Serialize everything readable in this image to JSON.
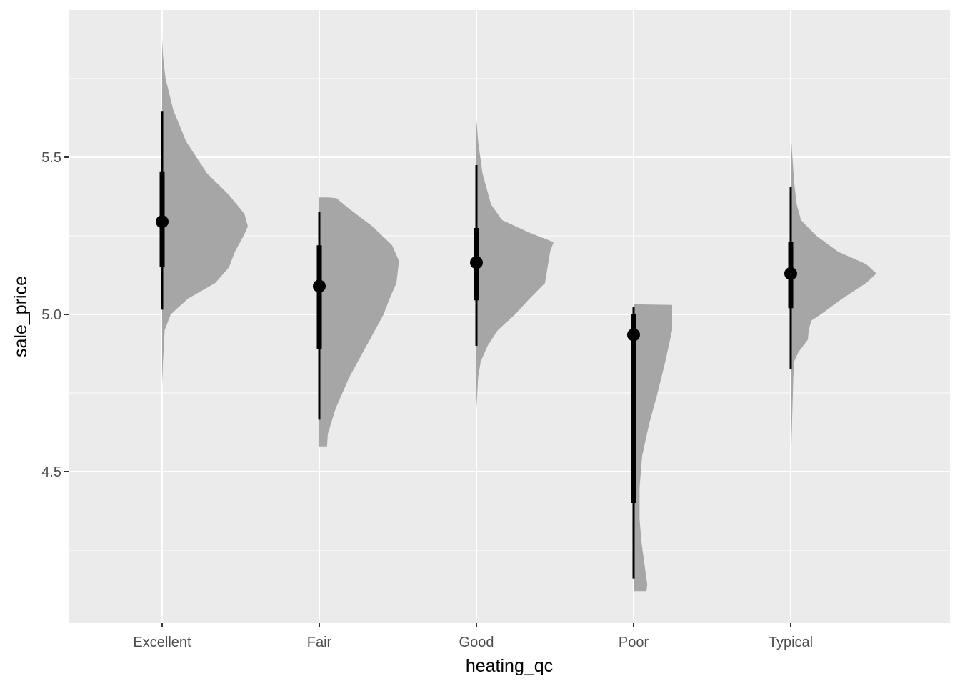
{
  "chart_data": {
    "type": "half-eye",
    "xlabel": "heating_qc",
    "ylabel": "sale_price",
    "categories": [
      "Excellent",
      "Fair",
      "Good",
      "Poor",
      "Typical"
    ],
    "y_ticks": [
      4.5,
      5.0,
      5.5
    ],
    "y_tick_labels": [
      "4.5",
      "5.0",
      "5.5"
    ],
    "ylim": [
      4.04,
      5.98
    ],
    "grid": true,
    "colors": {
      "panel": "#ebebeb",
      "grid": "#ffffff",
      "density": "#a6a6a6",
      "interval": "#000000"
    },
    "series": [
      {
        "category": "Excellent",
        "point": 5.295,
        "inner_interval": [
          5.15,
          5.455
        ],
        "outer_interval": [
          5.015,
          5.645
        ],
        "density": [
          [
            4.77,
            0.0
          ],
          [
            4.85,
            0.01
          ],
          [
            4.95,
            0.03
          ],
          [
            5.0,
            0.1
          ],
          [
            5.05,
            0.3
          ],
          [
            5.1,
            0.62
          ],
          [
            5.15,
            0.78
          ],
          [
            5.2,
            0.85
          ],
          [
            5.25,
            0.95
          ],
          [
            5.28,
            1.0
          ],
          [
            5.32,
            0.96
          ],
          [
            5.38,
            0.78
          ],
          [
            5.45,
            0.52
          ],
          [
            5.55,
            0.28
          ],
          [
            5.65,
            0.13
          ],
          [
            5.75,
            0.04
          ],
          [
            5.82,
            0.01
          ],
          [
            5.88,
            0.0
          ]
        ]
      },
      {
        "category": "Fair",
        "point": 5.09,
        "inner_interval": [
          4.89,
          5.22
        ],
        "outer_interval": [
          4.665,
          5.325
        ],
        "density": [
          [
            4.58,
            0.09
          ],
          [
            4.62,
            0.1
          ],
          [
            4.7,
            0.19
          ],
          [
            4.8,
            0.35
          ],
          [
            4.9,
            0.55
          ],
          [
            5.0,
            0.75
          ],
          [
            5.05,
            0.82
          ],
          [
            5.1,
            0.9
          ],
          [
            5.17,
            0.93
          ],
          [
            5.22,
            0.85
          ],
          [
            5.28,
            0.62
          ],
          [
            5.34,
            0.33
          ],
          [
            5.37,
            0.2
          ],
          [
            5.372,
            0.1
          ]
        ]
      },
      {
        "category": "Good",
        "point": 5.165,
        "inner_interval": [
          5.045,
          5.275
        ],
        "outer_interval": [
          4.9,
          5.475
        ],
        "density": [
          [
            4.7,
            0.0
          ],
          [
            4.75,
            0.01
          ],
          [
            4.8,
            0.02
          ],
          [
            4.85,
            0.05
          ],
          [
            4.9,
            0.13
          ],
          [
            4.95,
            0.25
          ],
          [
            5.0,
            0.45
          ],
          [
            5.05,
            0.62
          ],
          [
            5.1,
            0.8
          ],
          [
            5.15,
            0.83
          ],
          [
            5.2,
            0.86
          ],
          [
            5.23,
            0.9
          ],
          [
            5.26,
            0.62
          ],
          [
            5.3,
            0.3
          ],
          [
            5.35,
            0.17
          ],
          [
            5.45,
            0.07
          ],
          [
            5.55,
            0.02
          ],
          [
            5.62,
            0.0
          ]
        ]
      },
      {
        "category": "Poor",
        "point": 4.935,
        "inner_interval": [
          4.4,
          5.0
        ],
        "outer_interval": [
          4.16,
          5.025
        ],
        "density": [
          [
            4.12,
            0.15
          ],
          [
            4.14,
            0.16
          ],
          [
            4.2,
            0.13
          ],
          [
            4.28,
            0.09
          ],
          [
            4.35,
            0.07
          ],
          [
            4.45,
            0.07
          ],
          [
            4.55,
            0.1
          ],
          [
            4.65,
            0.18
          ],
          [
            4.75,
            0.28
          ],
          [
            4.85,
            0.37
          ],
          [
            4.95,
            0.45
          ],
          [
            5.0,
            0.45
          ],
          [
            5.03,
            0.45
          ],
          [
            5.032,
            0.0
          ]
        ]
      },
      {
        "category": "Typical",
        "point": 5.13,
        "inner_interval": [
          5.02,
          5.23
        ],
        "outer_interval": [
          4.825,
          5.405
        ],
        "density": [
          [
            4.11,
            0.0
          ],
          [
            4.2,
            0.0
          ],
          [
            4.47,
            0.0
          ],
          [
            4.6,
            0.01
          ],
          [
            4.7,
            0.02
          ],
          [
            4.8,
            0.03
          ],
          [
            4.85,
            0.04
          ],
          [
            4.88,
            0.09
          ],
          [
            4.92,
            0.2
          ],
          [
            4.95,
            0.21
          ],
          [
            4.98,
            0.24
          ],
          [
            5.0,
            0.35
          ],
          [
            5.05,
            0.6
          ],
          [
            5.1,
            0.88
          ],
          [
            5.13,
            1.0
          ],
          [
            5.16,
            0.88
          ],
          [
            5.2,
            0.55
          ],
          [
            5.25,
            0.3
          ],
          [
            5.3,
            0.12
          ],
          [
            5.35,
            0.07
          ],
          [
            5.42,
            0.04
          ],
          [
            5.5,
            0.02
          ],
          [
            5.58,
            0.0
          ]
        ]
      }
    ]
  }
}
